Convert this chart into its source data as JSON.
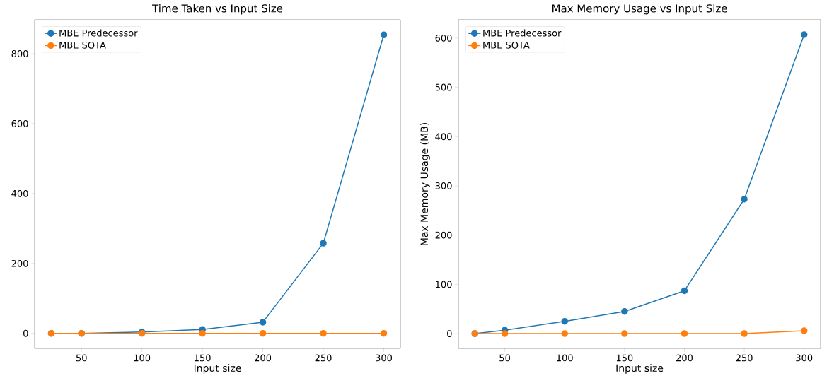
{
  "chart_data": [
    {
      "type": "line",
      "title": "Time Taken vs Input Size",
      "xlabel": "Input size",
      "x": [
        25,
        50,
        100,
        150,
        200,
        250,
        300
      ],
      "series": [
        {
          "name": "MBE Predecessor",
          "color": "#1f77b4",
          "values": [
            0,
            0,
            4,
            11,
            32,
            258,
            854
          ]
        },
        {
          "name": "MBE SOTA",
          "color": "#ff7f0e",
          "values": [
            0,
            0,
            0,
            0,
            0,
            0,
            0
          ]
        }
      ],
      "xlim": [
        11.25,
        313.75
      ],
      "ylim": [
        -43,
        897
      ],
      "xticks": [
        50,
        100,
        150,
        200,
        250,
        300
      ],
      "yticks": [
        0,
        200,
        400,
        600,
        800
      ],
      "legend": "top left",
      "marker": "circle",
      "line_style": "solid"
    },
    {
      "type": "line",
      "title": "Max Memory Usage vs Input Size",
      "xlabel": "Input size",
      "ylabel": "Max Memory Usage (MB)",
      "x": [
        25,
        50,
        100,
        150,
        200,
        250,
        300
      ],
      "series": [
        {
          "name": "MBE Predecessor",
          "color": "#1f77b4",
          "values": [
            0,
            7,
            25,
            45,
            87,
            273,
            607
          ]
        },
        {
          "name": "MBE SOTA",
          "color": "#ff7f0e",
          "values": [
            0,
            0,
            0,
            0,
            0,
            0,
            6
          ]
        }
      ],
      "xlim": [
        11.25,
        313.75
      ],
      "ylim": [
        -30,
        637
      ],
      "xticks": [
        50,
        100,
        150,
        200,
        250,
        300
      ],
      "yticks": [
        0,
        100,
        200,
        300,
        400,
        500,
        600
      ],
      "legend": "top left",
      "marker": "circle",
      "line_style": "solid"
    }
  ]
}
